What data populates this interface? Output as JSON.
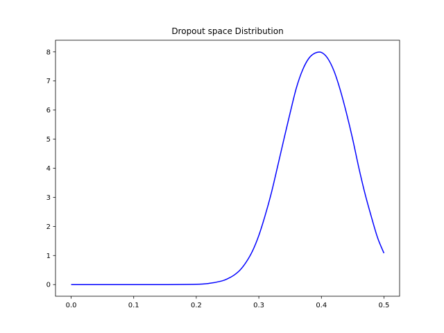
{
  "chart_data": {
    "type": "line",
    "title": "Dropout space Distribution",
    "xlabel": "",
    "ylabel": "",
    "xlim": [
      -0.025,
      0.525
    ],
    "ylim": [
      -0.4,
      8.4
    ],
    "xticks": [
      "0.0",
      "0.1",
      "0.2",
      "0.3",
      "0.4",
      "0.5"
    ],
    "yticks": [
      "0",
      "1",
      "2",
      "3",
      "4",
      "5",
      "6",
      "7",
      "8"
    ],
    "grid": false,
    "series": [
      {
        "color": "#0000ff",
        "x": [
          0.0,
          0.05,
          0.1,
          0.15,
          0.2,
          0.22,
          0.24,
          0.25,
          0.26,
          0.27,
          0.28,
          0.29,
          0.3,
          0.31,
          0.32,
          0.33,
          0.34,
          0.35,
          0.36,
          0.37,
          0.38,
          0.39,
          0.4,
          0.41,
          0.42,
          0.43,
          0.44,
          0.45,
          0.46,
          0.47,
          0.48,
          0.49,
          0.5
        ],
        "y": [
          0.0,
          0.0,
          0.0,
          0.0,
          0.01,
          0.04,
          0.12,
          0.2,
          0.32,
          0.5,
          0.78,
          1.16,
          1.69,
          2.37,
          3.15,
          4.06,
          4.99,
          5.9,
          6.76,
          7.38,
          7.78,
          7.96,
          7.98,
          7.78,
          7.35,
          6.7,
          5.9,
          5.0,
          4.0,
          3.1,
          2.32,
          1.6,
          1.08
        ]
      }
    ]
  }
}
